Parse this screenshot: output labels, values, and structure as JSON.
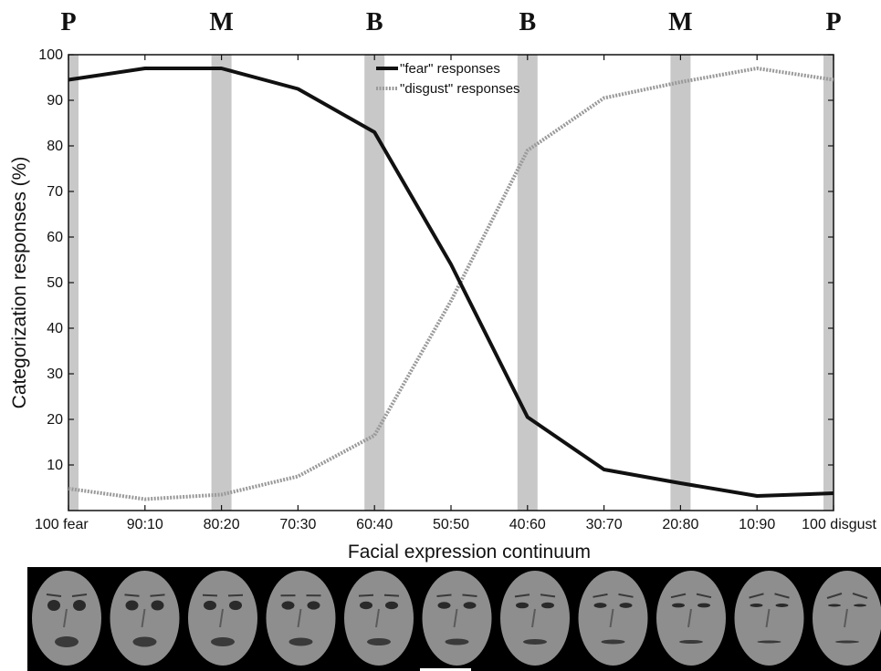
{
  "chart_data": {
    "type": "line",
    "title": "",
    "xlabel": "Facial expression continuum",
    "ylabel": "Categorization responses (%)",
    "ylim": [
      0,
      100
    ],
    "yticks": [
      10,
      20,
      30,
      40,
      50,
      60,
      70,
      80,
      90,
      100
    ],
    "categories": [
      "100 fear",
      "90:10",
      "80:20",
      "70:30",
      "60:40",
      "50:50",
      "40:60",
      "30:70",
      "20:80",
      "10:90",
      "100 disgust"
    ],
    "series": [
      {
        "name": "\"fear\" responses",
        "values": [
          94.5,
          97,
          97,
          92.5,
          83,
          54,
          20.5,
          9,
          6,
          3.2,
          3.8
        ],
        "color": "#111111",
        "style": "solid"
      },
      {
        "name": "\"disgust\" responses",
        "values": [
          4.8,
          2.5,
          3.5,
          7.5,
          16.5,
          46,
          79,
          90.5,
          94,
          97,
          94.5
        ],
        "color": "#9a9a9a",
        "style": "dotted"
      }
    ],
    "bands": [
      {
        "label": "P",
        "category_index": 0
      },
      {
        "label": "M",
        "category_index": 2
      },
      {
        "label": "B",
        "category_index": 4
      },
      {
        "label": "B",
        "category_index": 6
      },
      {
        "label": "M",
        "category_index": 8
      },
      {
        "label": "P",
        "category_index": 10
      }
    ],
    "grid": false,
    "legend_position": "top-center"
  },
  "colors": {
    "band": "#c8c8c8",
    "face_strip_background": "#000000",
    "face": "#8e8e8e"
  },
  "face_strip": {
    "count": 11
  }
}
